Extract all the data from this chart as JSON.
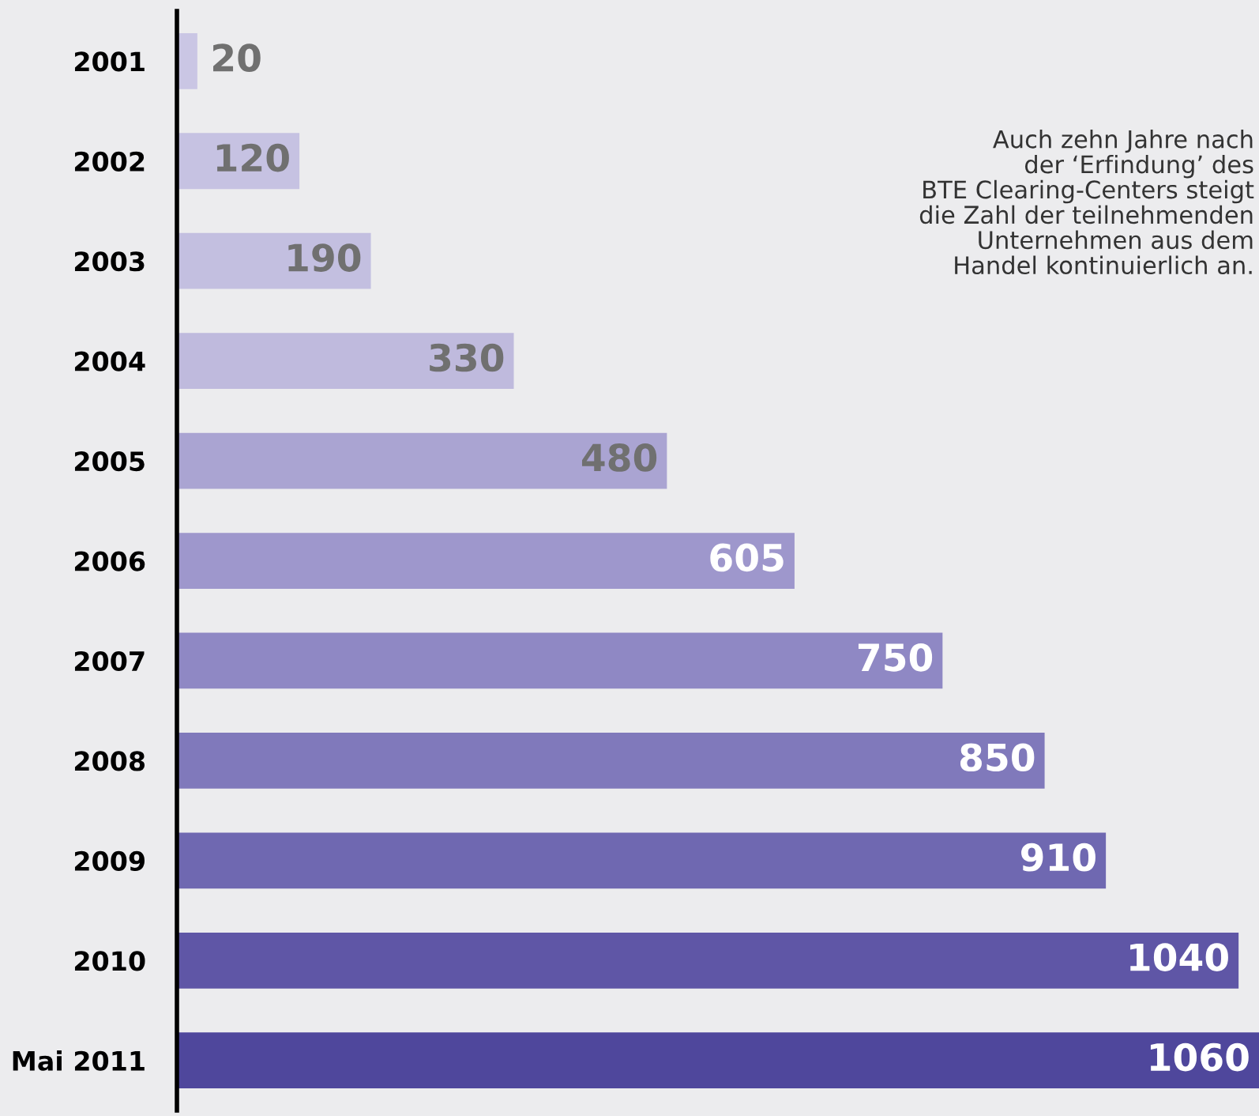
{
  "chart_data": {
    "type": "bar",
    "orientation": "horizontal",
    "categories": [
      "2001",
      "2002",
      "2003",
      "2004",
      "2005",
      "2006",
      "2007",
      "2008",
      "2009",
      "2010",
      "Mai 2011"
    ],
    "values": [
      20,
      120,
      190,
      330,
      480,
      605,
      750,
      850,
      910,
      1040,
      1060
    ],
    "colors": [
      "#cac6e4",
      "#c6c2e2",
      "#c3bfe0",
      "#bfbadd",
      "#aaa4d2",
      "#9e97cc",
      "#8f88c4",
      "#8079bb",
      "#6f68b1",
      "#5f56a6",
      "#4f479c"
    ],
    "data_labels": true,
    "grid": false,
    "legend": false,
    "annotations": [
      "Auch zehn Jahre nach\nder ‘Erfindung’ des\nBTE Clearing-Centers steigt\ndie Zahl der teilnehmenden\nUnternehmen aus dem\nHandel kontinuierlich an."
    ]
  }
}
